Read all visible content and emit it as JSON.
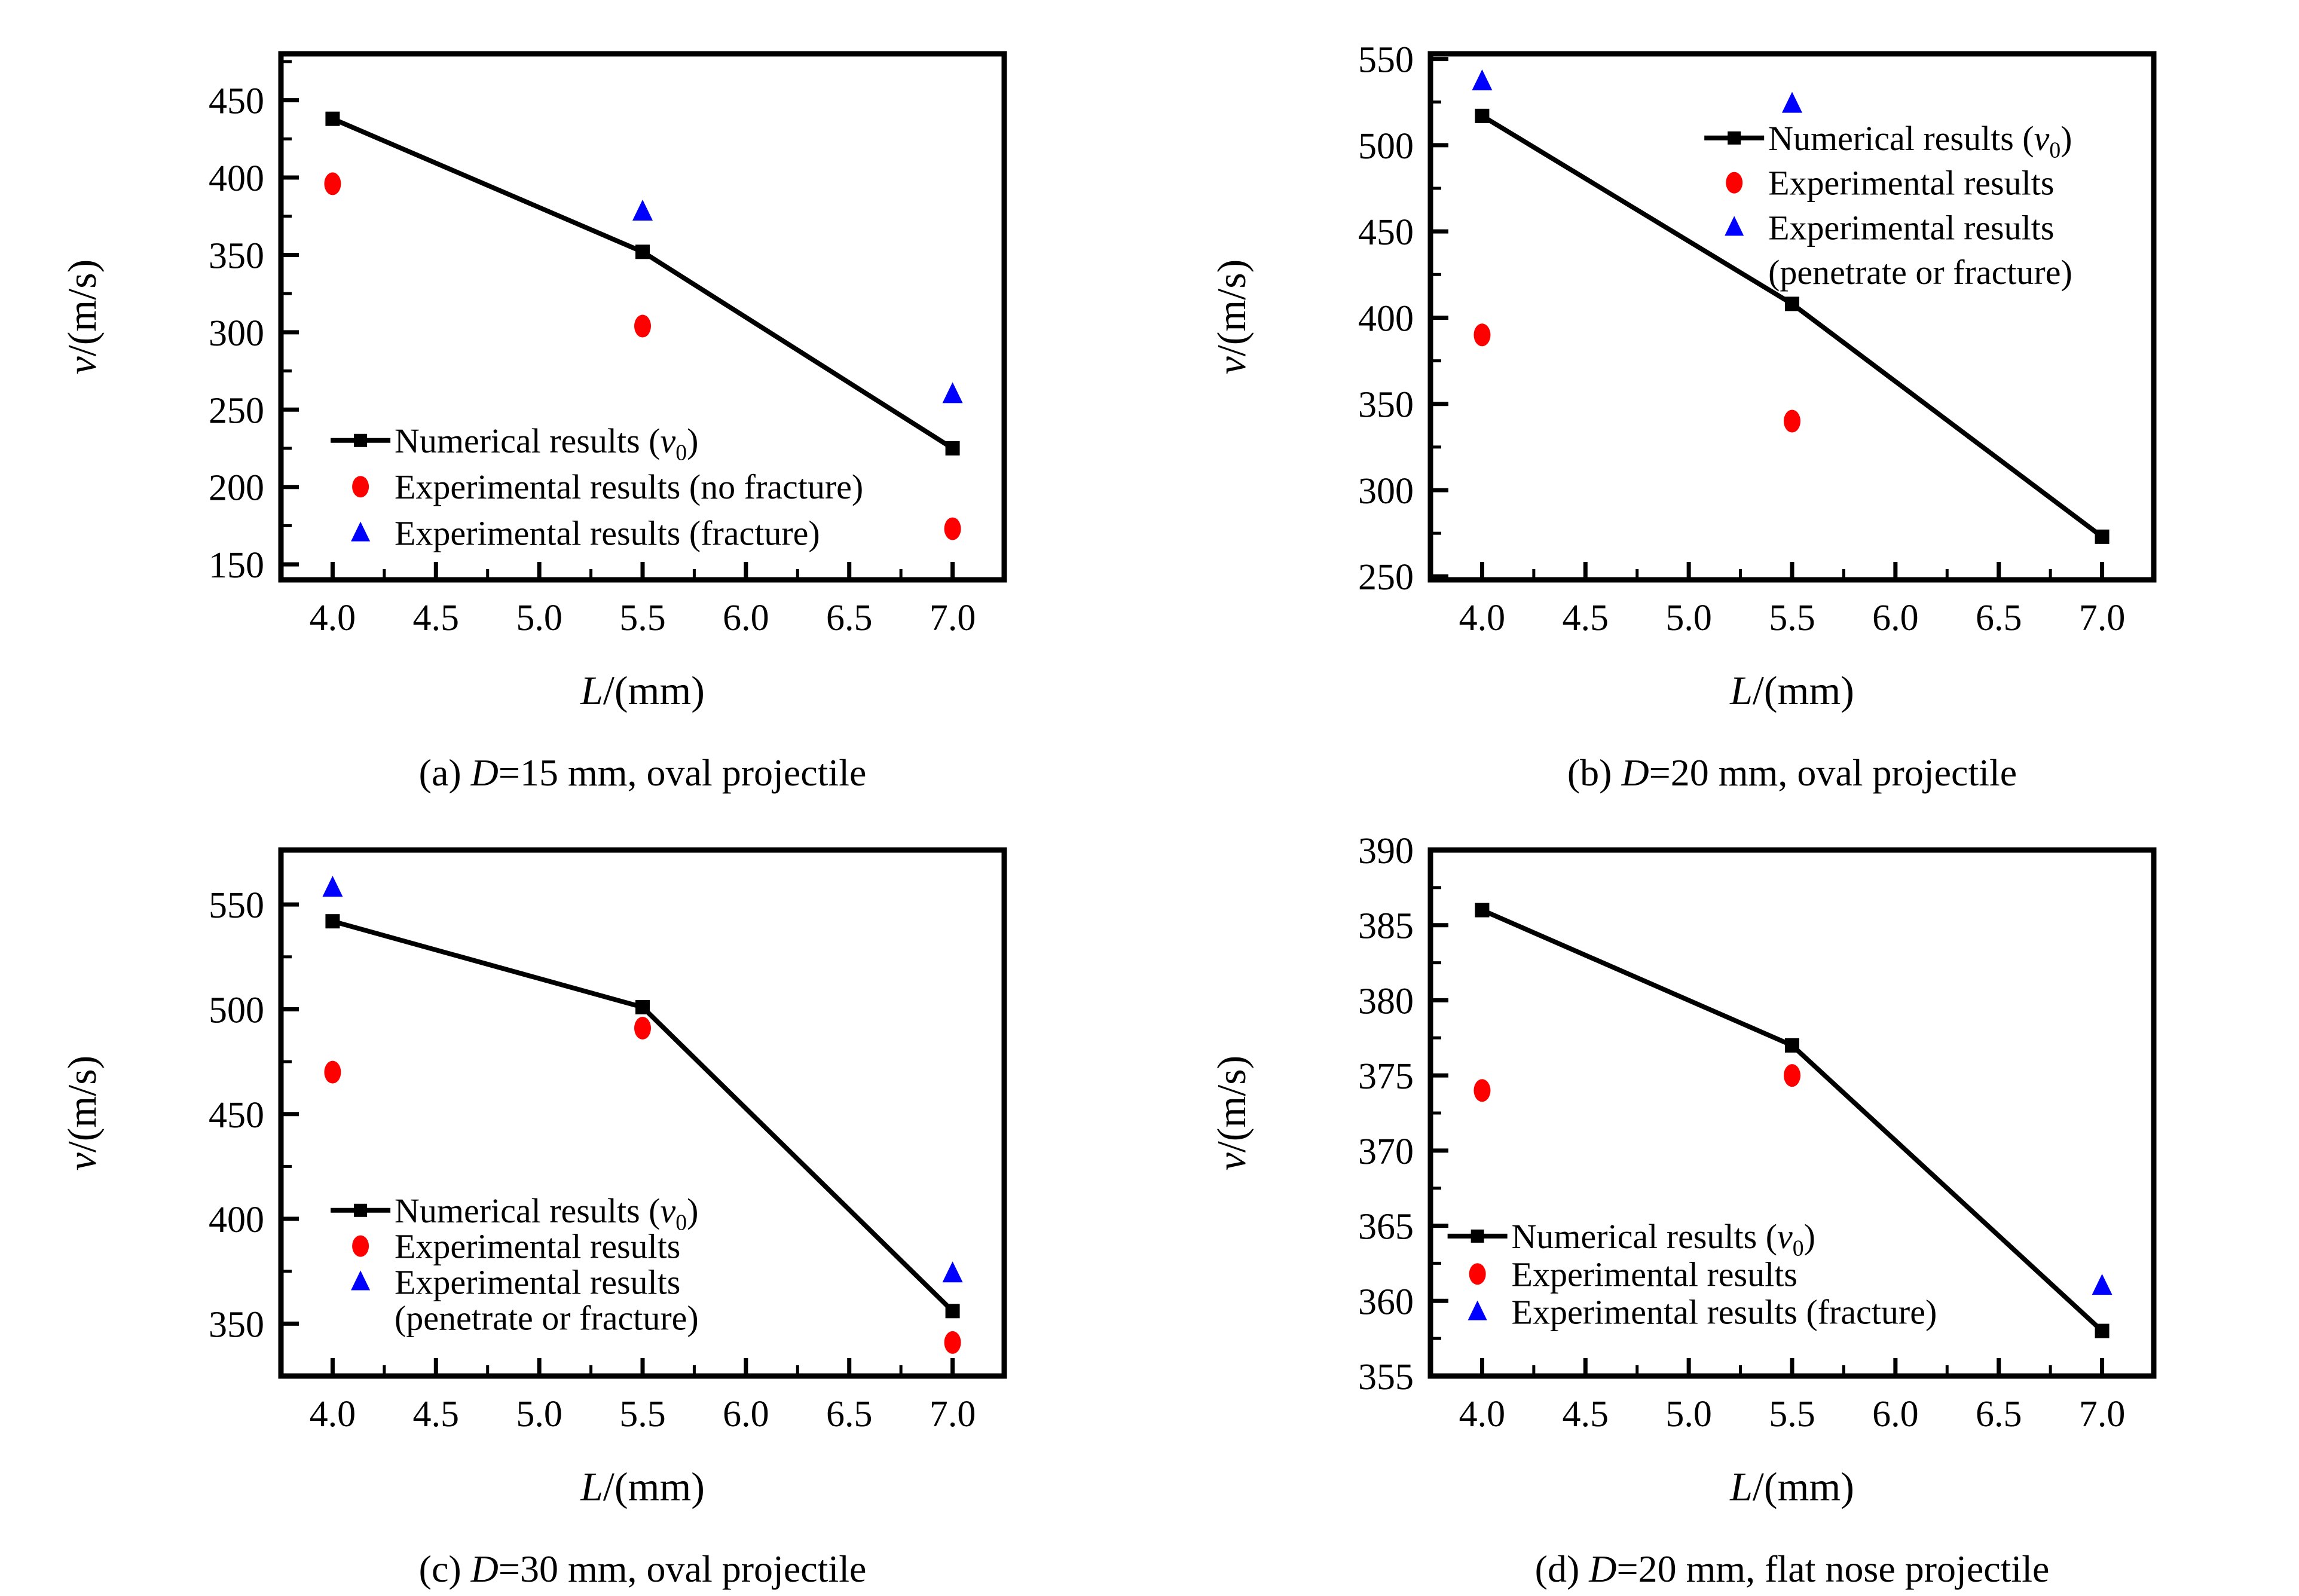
{
  "page": {
    "background": "#ffffff",
    "title": ""
  },
  "colors": {
    "numerical": "#000000",
    "experimental": "#ff0000",
    "fracture": "#0000ff",
    "frame": "#000000",
    "background": "#ffffff"
  },
  "axis_labels": {
    "xlabel": "L/(mm)",
    "ylabel": "v/(m/s)",
    "xlabel_segments": [
      {
        "t": "L",
        "i": 1
      },
      {
        "t": "/(mm)"
      }
    ],
    "ylabel_segments": [
      {
        "t": "v",
        "i": 1
      },
      {
        "t": "/(m/s)"
      }
    ]
  },
  "chart_data": [
    {
      "id": "a",
      "type": "line+scatter",
      "caption": "(a) D=15 mm, oval projectile",
      "caption_segments": [
        {
          "t": "(a) "
        },
        {
          "t": "D",
          "i": 1
        },
        {
          "t": "=15 mm, oval projectile"
        }
      ],
      "xlabel": "L/(mm)",
      "ylabel": "v/(m/s)",
      "xlim": [
        3.75,
        7.25
      ],
      "ylim": [
        140,
        480
      ],
      "xticks": [
        {
          "v": 4.0,
          "label": "4.0"
        },
        {
          "v": 4.5,
          "label": "4.5"
        },
        {
          "v": 5.0,
          "label": "5.0"
        },
        {
          "v": 5.5,
          "label": "5.5"
        },
        {
          "v": 6.0,
          "label": "6.0"
        },
        {
          "v": 6.5,
          "label": "6.5"
        },
        {
          "v": 7.0,
          "label": "7.0"
        }
      ],
      "yticks": [
        {
          "v": 150,
          "label": "150"
        },
        {
          "v": 200,
          "label": "200"
        },
        {
          "v": 250,
          "label": "250"
        },
        {
          "v": 300,
          "label": "300"
        },
        {
          "v": 350,
          "label": "350"
        },
        {
          "v": 400,
          "label": "400"
        },
        {
          "v": 450,
          "label": "450"
        }
      ],
      "x_minor_step": 0.25,
      "y_minor_step": 25,
      "series": [
        {
          "key": "numerical",
          "name": "Numerical results (v₀)",
          "marker": "square",
          "line": true,
          "points": [
            [
              4.0,
              438
            ],
            [
              5.5,
              352
            ],
            [
              7.0,
              225
            ]
          ]
        },
        {
          "key": "experimental",
          "name": "Experimental results (no fracture)",
          "marker": "circle",
          "line": false,
          "points": [
            [
              4.0,
              396
            ],
            [
              5.5,
              304
            ],
            [
              7.0,
              173
            ]
          ]
        },
        {
          "key": "fracture",
          "name": "Experimental results (fracture)",
          "marker": "triangle",
          "line": false,
          "points": [
            [
              5.5,
              378
            ],
            [
              7.0,
              260
            ]
          ]
        }
      ],
      "legend": {
        "position": "lower-left",
        "marker_fx": 0.11,
        "text_fx": 0.157,
        "fy": 0.735,
        "line_h": 0.088,
        "lines": [
          {
            "marker": "numerical",
            "label": "Numerical results (v₀)",
            "segments": [
              {
                "t": "Numerical results ("
              },
              {
                "t": "v",
                "i": 1
              },
              {
                "t": "0",
                "sub": 1
              },
              {
                "t": ")"
              }
            ]
          },
          {
            "marker": "experimental",
            "label": "Experimental results (no fracture)",
            "segments": [
              {
                "t": "Experimental results (no fracture)"
              }
            ]
          },
          {
            "marker": "fracture",
            "label": "Experimental results (fracture)",
            "segments": [
              {
                "t": "Experimental results (fracture)"
              }
            ]
          }
        ]
      }
    },
    {
      "id": "b",
      "type": "line+scatter",
      "caption": "(b) D=20 mm, oval projectile",
      "caption_segments": [
        {
          "t": "(b) "
        },
        {
          "t": "D",
          "i": 1
        },
        {
          "t": "=20 mm, oval projectile"
        }
      ],
      "xlabel": "L/(mm)",
      "ylabel": "v/(m/s)",
      "xlim": [
        3.75,
        7.25
      ],
      "ylim": [
        248,
        553
      ],
      "xticks": [
        {
          "v": 4.0,
          "label": "4.0"
        },
        {
          "v": 4.5,
          "label": "4.5"
        },
        {
          "v": 5.0,
          "label": "5.0"
        },
        {
          "v": 5.5,
          "label": "5.5"
        },
        {
          "v": 6.0,
          "label": "6.0"
        },
        {
          "v": 6.5,
          "label": "6.5"
        },
        {
          "v": 7.0,
          "label": "7.0"
        }
      ],
      "yticks": [
        {
          "v": 250,
          "label": "250"
        },
        {
          "v": 300,
          "label": "300"
        },
        {
          "v": 350,
          "label": "350"
        },
        {
          "v": 400,
          "label": "400"
        },
        {
          "v": 450,
          "label": "450"
        },
        {
          "v": 500,
          "label": "500"
        },
        {
          "v": 550,
          "label": "550"
        }
      ],
      "x_minor_step": 0.25,
      "y_minor_step": 25,
      "series": [
        {
          "key": "numerical",
          "name": "Numerical results (v₀)",
          "marker": "square",
          "line": true,
          "points": [
            [
              4.0,
              517
            ],
            [
              5.5,
              408
            ],
            [
              7.0,
              273
            ]
          ]
        },
        {
          "key": "experimental",
          "name": "Experimental results",
          "marker": "circle",
          "line": false,
          "points": [
            [
              4.0,
              390
            ],
            [
              5.5,
              340
            ]
          ]
        },
        {
          "key": "fracture",
          "name": "Experimental results (penetrate or fracture)",
          "marker": "triangle",
          "line": false,
          "points": [
            [
              4.0,
              537
            ],
            [
              5.5,
              524
            ]
          ]
        }
      ],
      "legend": {
        "position": "upper-right",
        "marker_fx": 0.42,
        "text_fx": 0.467,
        "fy": 0.16,
        "line_h": 0.085,
        "lines": [
          {
            "marker": "numerical",
            "label": "Numerical results (v₀)",
            "segments": [
              {
                "t": "Numerical results ("
              },
              {
                "t": "v",
                "i": 1
              },
              {
                "t": "0",
                "sub": 1
              },
              {
                "t": ")"
              }
            ]
          },
          {
            "marker": "experimental",
            "label": "Experimental results",
            "segments": [
              {
                "t": "Experimental results"
              }
            ]
          },
          {
            "marker": "fracture",
            "label": "Experimental results",
            "segments": [
              {
                "t": "Experimental results"
              }
            ]
          },
          {
            "marker": null,
            "label": "(penetrate or fracture)",
            "segments": [
              {
                "t": "(penetrate or fracture)"
              }
            ]
          }
        ]
      }
    },
    {
      "id": "c",
      "type": "line+scatter",
      "caption": "(c) D=30 mm, oval projectile",
      "caption_segments": [
        {
          "t": "(c) "
        },
        {
          "t": "D",
          "i": 1
        },
        {
          "t": "=30 mm, oval projectile"
        }
      ],
      "xlabel": "L/(mm)",
      "ylabel": "v/(m/s)",
      "xlim": [
        3.75,
        7.25
      ],
      "ylim": [
        325,
        576
      ],
      "xticks": [
        {
          "v": 4.0,
          "label": "4.0"
        },
        {
          "v": 4.5,
          "label": "4.5"
        },
        {
          "v": 5.0,
          "label": "5.0"
        },
        {
          "v": 5.5,
          "label": "5.5"
        },
        {
          "v": 6.0,
          "label": "6.0"
        },
        {
          "v": 6.5,
          "label": "6.5"
        },
        {
          "v": 7.0,
          "label": "7.0"
        }
      ],
      "yticks": [
        {
          "v": 350,
          "label": "350"
        },
        {
          "v": 400,
          "label": "400"
        },
        {
          "v": 450,
          "label": "450"
        },
        {
          "v": 500,
          "label": "500"
        },
        {
          "v": 550,
          "label": "550"
        }
      ],
      "x_minor_step": 0.25,
      "y_minor_step": 25,
      "series": [
        {
          "key": "numerical",
          "name": "Numerical results (v₀)",
          "marker": "square",
          "line": true,
          "points": [
            [
              4.0,
              542
            ],
            [
              5.5,
              501
            ],
            [
              7.0,
              356
            ]
          ]
        },
        {
          "key": "experimental",
          "name": "Experimental results",
          "marker": "circle",
          "line": false,
          "points": [
            [
              4.0,
              470
            ],
            [
              5.5,
              491
            ],
            [
              7.0,
              341
            ]
          ]
        },
        {
          "key": "fracture",
          "name": "Experimental results (penetrate or fracture)",
          "marker": "triangle",
          "line": false,
          "points": [
            [
              4.0,
              558
            ],
            [
              7.0,
              374
            ]
          ]
        }
      ],
      "legend": {
        "position": "lower-left",
        "marker_fx": 0.11,
        "text_fx": 0.157,
        "fy": 0.685,
        "line_h": 0.068,
        "lines": [
          {
            "marker": "numerical",
            "label": "Numerical results (v₀)",
            "segments": [
              {
                "t": "Numerical results ("
              },
              {
                "t": "v",
                "i": 1
              },
              {
                "t": "0",
                "sub": 1
              },
              {
                "t": ")"
              }
            ]
          },
          {
            "marker": "experimental",
            "label": "Experimental results",
            "segments": [
              {
                "t": "Experimental results"
              }
            ]
          },
          {
            "marker": "fracture",
            "label": "Experimental results",
            "segments": [
              {
                "t": "Experimental results"
              }
            ]
          },
          {
            "marker": null,
            "label": "(penetrate or fracture)",
            "segments": [
              {
                "t": "(penetrate or fracture)"
              }
            ]
          }
        ]
      }
    },
    {
      "id": "d",
      "type": "line+scatter",
      "caption": "(d) D=20 mm, flat nose projectile",
      "caption_segments": [
        {
          "t": "(d) "
        },
        {
          "t": "D",
          "i": 1
        },
        {
          "t": "=20 mm, flat nose projectile"
        }
      ],
      "xlabel": "L/(mm)",
      "ylabel": "v/(m/s)",
      "xlim": [
        3.75,
        7.25
      ],
      "ylim": [
        355,
        390
      ],
      "xticks": [
        {
          "v": 4.0,
          "label": "4.0"
        },
        {
          "v": 4.5,
          "label": "4.5"
        },
        {
          "v": 5.0,
          "label": "5.0"
        },
        {
          "v": 5.5,
          "label": "5.5"
        },
        {
          "v": 6.0,
          "label": "6.0"
        },
        {
          "v": 6.5,
          "label": "6.5"
        },
        {
          "v": 7.0,
          "label": "7.0"
        }
      ],
      "yticks": [
        {
          "v": 355,
          "label": "355"
        },
        {
          "v": 360,
          "label": "360"
        },
        {
          "v": 365,
          "label": "365"
        },
        {
          "v": 370,
          "label": "370"
        },
        {
          "v": 375,
          "label": "375"
        },
        {
          "v": 380,
          "label": "380"
        },
        {
          "v": 385,
          "label": "385"
        },
        {
          "v": 390,
          "label": "390"
        }
      ],
      "x_minor_step": 0.25,
      "y_minor_step": 2.5,
      "series": [
        {
          "key": "numerical",
          "name": "Numerical results (v₀)",
          "marker": "square",
          "line": true,
          "points": [
            [
              4.0,
              386
            ],
            [
              5.5,
              377
            ],
            [
              7.0,
              358
            ]
          ]
        },
        {
          "key": "experimental",
          "name": "Experimental results",
          "marker": "circle",
          "line": false,
          "points": [
            [
              4.0,
              374
            ],
            [
              5.5,
              375
            ]
          ]
        },
        {
          "key": "fracture",
          "name": "Experimental results (fracture)",
          "marker": "triangle",
          "line": false,
          "points": [
            [
              7.0,
              361
            ]
          ]
        }
      ],
      "legend": {
        "position": "lower-left",
        "marker_fx": 0.065,
        "text_fx": 0.112,
        "fy": 0.734,
        "line_h": 0.072,
        "lines": [
          {
            "marker": "numerical",
            "label": "Numerical results (v₀)",
            "segments": [
              {
                "t": "Numerical results ("
              },
              {
                "t": "v",
                "i": 1
              },
              {
                "t": "0",
                "sub": 1
              },
              {
                "t": ")"
              }
            ]
          },
          {
            "marker": "experimental",
            "label": "Experimental results",
            "segments": [
              {
                "t": "Experimental results"
              }
            ]
          },
          {
            "marker": "fracture",
            "label": "Experimental results (fracture)",
            "segments": [
              {
                "t": "Experimental results (fracture)"
              }
            ]
          }
        ]
      }
    }
  ]
}
